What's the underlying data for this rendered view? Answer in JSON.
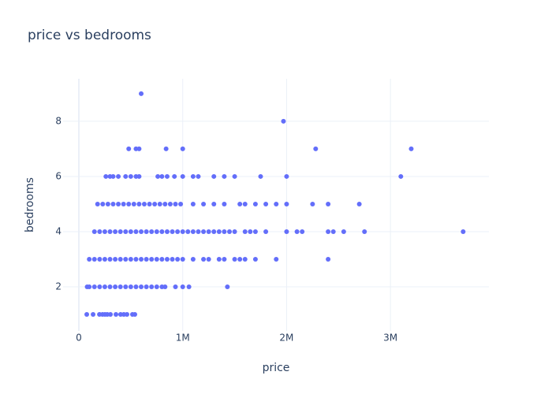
{
  "chart_data": {
    "type": "scatter",
    "title": "price vs bedrooms",
    "x_label": "price",
    "y_label": "bedrooms",
    "color": "#636efa",
    "grid": true,
    "xlim": [
      -151900,
      3948000
    ],
    "ylim": [
      0.4,
      9.54
    ],
    "xticks": [
      0,
      {
        "value": 1000000,
        "label": "1M"
      },
      {
        "value": 2000000,
        "label": "2M"
      },
      {
        "value": 3000000,
        "label": "3M"
      }
    ],
    "yticks": [
      2,
      4,
      6,
      8
    ],
    "x": [
      76000,
      137000,
      198000,
      228000,
      251000,
      273000,
      304000,
      357000,
      402000,
      433000,
      463000,
      516000,
      539000,
      80000,
      100000,
      150000,
      200000,
      250000,
      300000,
      350000,
      400000,
      450000,
      500000,
      550000,
      600000,
      650000,
      700000,
      750000,
      800000,
      830000,
      930000,
      1000000,
      1060000,
      1430000,
      100000,
      150000,
      200000,
      250000,
      300000,
      350000,
      400000,
      450000,
      500000,
      550000,
      600000,
      650000,
      700000,
      750000,
      800000,
      850000,
      900000,
      950000,
      1000000,
      1100000,
      1200000,
      1250000,
      1350000,
      1400000,
      1500000,
      1550000,
      1600000,
      1700000,
      1900000,
      2400000,
      150000,
      200000,
      250000,
      300000,
      350000,
      400000,
      450000,
      500000,
      550000,
      600000,
      650000,
      700000,
      750000,
      800000,
      850000,
      900000,
      950000,
      1000000,
      1050000,
      1100000,
      1150000,
      1200000,
      1250000,
      1300000,
      1350000,
      1400000,
      1450000,
      1500000,
      1600000,
      1650000,
      1700000,
      1800000,
      2000000,
      2100000,
      2150000,
      2400000,
      2450000,
      2550000,
      2750000,
      3700000,
      180000,
      230000,
      280000,
      330000,
      380000,
      430000,
      480000,
      530000,
      580000,
      630000,
      680000,
      730000,
      780000,
      830000,
      880000,
      930000,
      980000,
      1100000,
      1200000,
      1300000,
      1400000,
      1550000,
      1600000,
      1700000,
      1800000,
      1900000,
      2000000,
      2250000,
      2400000,
      2700000,
      260000,
      300000,
      330000,
      380000,
      450000,
      500000,
      550000,
      580000,
      760000,
      800000,
      850000,
      920000,
      1000000,
      1100000,
      1150000,
      1300000,
      1400000,
      1500000,
      1750000,
      2000000,
      3100000,
      480000,
      550000,
      580000,
      840000,
      1000000,
      2280000,
      3200000,
      1970000,
      600000
    ],
    "y": [
      1,
      1,
      1,
      1,
      1,
      1,
      1,
      1,
      1,
      1,
      1,
      1,
      1,
      2,
      2,
      2,
      2,
      2,
      2,
      2,
      2,
      2,
      2,
      2,
      2,
      2,
      2,
      2,
      2,
      2,
      2,
      2,
      2,
      2,
      3,
      3,
      3,
      3,
      3,
      3,
      3,
      3,
      3,
      3,
      3,
      3,
      3,
      3,
      3,
      3,
      3,
      3,
      3,
      3,
      3,
      3,
      3,
      3,
      3,
      3,
      3,
      3,
      3,
      3,
      4,
      4,
      4,
      4,
      4,
      4,
      4,
      4,
      4,
      4,
      4,
      4,
      4,
      4,
      4,
      4,
      4,
      4,
      4,
      4,
      4,
      4,
      4,
      4,
      4,
      4,
      4,
      4,
      4,
      4,
      4,
      4,
      4,
      4,
      4,
      4,
      4,
      4,
      4,
      4,
      5,
      5,
      5,
      5,
      5,
      5,
      5,
      5,
      5,
      5,
      5,
      5,
      5,
      5,
      5,
      5,
      5,
      5,
      5,
      5,
      5,
      5,
      5,
      5,
      5,
      5,
      5,
      5,
      5,
      5,
      6,
      6,
      6,
      6,
      6,
      6,
      6,
      6,
      6,
      6,
      6,
      6,
      6,
      6,
      6,
      6,
      6,
      6,
      6,
      6,
      6,
      7,
      7,
      7,
      7,
      7,
      7,
      7,
      8,
      9
    ]
  }
}
